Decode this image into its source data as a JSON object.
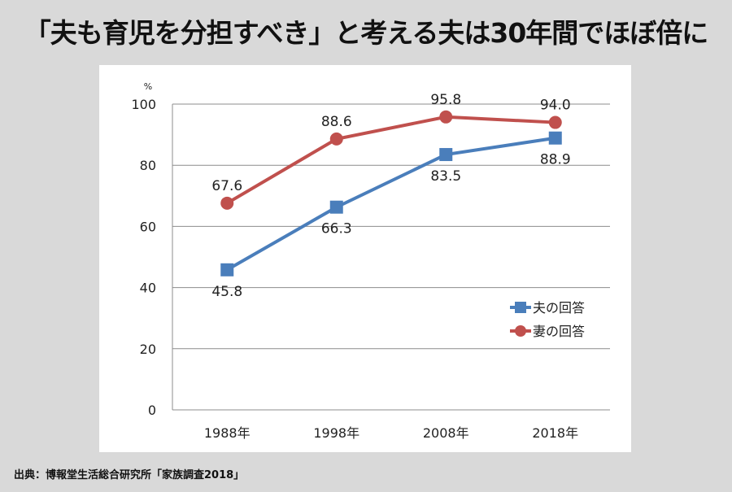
{
  "title": "「夫も育児を分担すべき」と考える夫は30年間でほぼ倍に",
  "source": "出典：博報堂生活総合研究所「家族調査2018」",
  "chart_data": {
    "type": "line",
    "categories": [
      "1988年",
      "1998年",
      "2008年",
      "2018年"
    ],
    "ylabel": "%",
    "ylim": [
      0,
      100
    ],
    "yticks": [
      0,
      20,
      40,
      60,
      80,
      100
    ],
    "grid": true,
    "legend": "right",
    "series": [
      {
        "name": "夫の回答",
        "values": [
          45.8,
          66.3,
          83.5,
          88.9
        ],
        "color": "#4a7ebb",
        "marker": "square"
      },
      {
        "name": "妻の回答",
        "values": [
          67.6,
          88.6,
          95.8,
          94.0
        ],
        "color": "#c0504d",
        "marker": "circle"
      }
    ]
  }
}
